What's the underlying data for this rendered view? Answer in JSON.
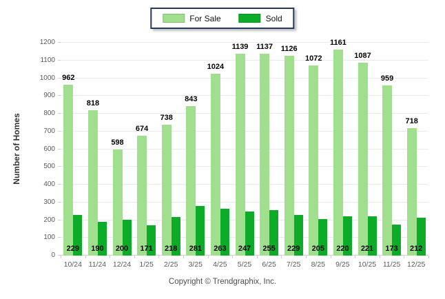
{
  "legend": {
    "items": [
      {
        "label": "For Sale",
        "color": "#A0DF8E"
      },
      {
        "label": "Sold",
        "color": "#0CAB28"
      }
    ]
  },
  "chart_data": {
    "type": "bar",
    "title": "",
    "categories": [
      "10/24",
      "11/24",
      "12/24",
      "1/25",
      "2/25",
      "3/25",
      "4/25",
      "5/25",
      "6/25",
      "7/25",
      "8/25",
      "9/25",
      "10/25",
      "11/25",
      "12/25"
    ],
    "series": [
      {
        "name": "For Sale",
        "color": "#A0DF8E",
        "values": [
          962,
          818,
          598,
          674,
          738,
          843,
          1024,
          1139,
          1137,
          1126,
          1072,
          1161,
          1087,
          959,
          718
        ]
      },
      {
        "name": "Sold",
        "color": "#0CAB28",
        "values": [
          229,
          190,
          200,
          171,
          218,
          281,
          263,
          247,
          255,
          229,
          205,
          220,
          221,
          173,
          212
        ]
      }
    ],
    "xlabel": "",
    "ylabel": "Number of Homes",
    "ylim": [
      0,
      1200
    ],
    "ytick_step": 100,
    "grid": true,
    "legend_position": "top-center",
    "gridline_color": "#e9e9e9",
    "axis_color": "#cfcfcf",
    "tick_label_color": "#595959",
    "value_label_color": "#000000"
  },
  "footer": {
    "copyright": "Copyright © Trendgraphix, Inc."
  }
}
